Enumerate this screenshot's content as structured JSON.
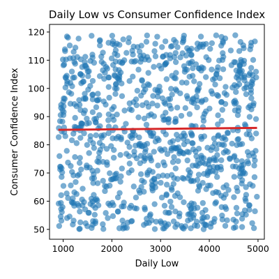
{
  "chart_data": {
    "type": "scatter",
    "title": "Daily Low vs Consumer Confidence Index",
    "xlabel": "Daily Low",
    "ylabel": "Consumer Confidence Index",
    "xlim": [
      720,
      5130
    ],
    "ylim": [
      46.5,
      122.7
    ],
    "xticks": [
      1000,
      2000,
      3000,
      4000,
      5000
    ],
    "yticks": [
      50,
      60,
      70,
      80,
      90,
      100,
      110,
      120
    ],
    "x_range": [
      900,
      4980
    ],
    "y_range": [
      50,
      119
    ],
    "n_points": 1000,
    "point_color": "#1f77b4",
    "point_alpha": 0.6,
    "trend_line": {
      "color": "#d62728",
      "x": [
        900,
        4980
      ],
      "y": [
        85.3,
        86.0
      ]
    },
    "grid": false,
    "legend": "none"
  }
}
